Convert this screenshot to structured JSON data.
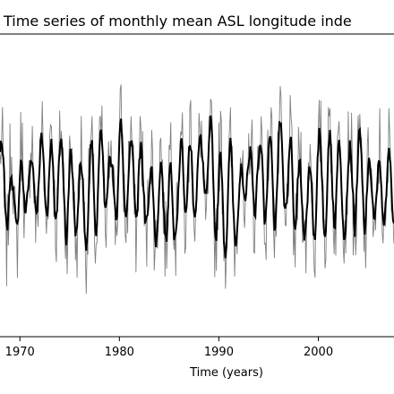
{
  "chart_data": {
    "type": "line",
    "title": "Time series of monthly mean ASL longitude inde",
    "xlabel": "Time (years)",
    "ylabel": "",
    "xlim": [
      1968.0,
      2007.6
    ],
    "ylim": [
      -1.0,
      1.0
    ],
    "grid": false,
    "xticks": [
      1970,
      1980,
      1990,
      2000
    ],
    "xtick_labels": [
      "1970",
      "1980",
      "1990",
      "2000"
    ],
    "series": [
      {
        "style": "monthly",
        "color": "#808080",
        "seed": 7,
        "amplitude": 0.34,
        "noise": 0.3,
        "cycles_per_year": 1.0,
        "start": 1968.0,
        "end": 2007.6
      },
      {
        "style": "smoothed",
        "color": "#000000",
        "values_source": "running-mean-of-monthly",
        "window_months": 5
      }
    ]
  }
}
